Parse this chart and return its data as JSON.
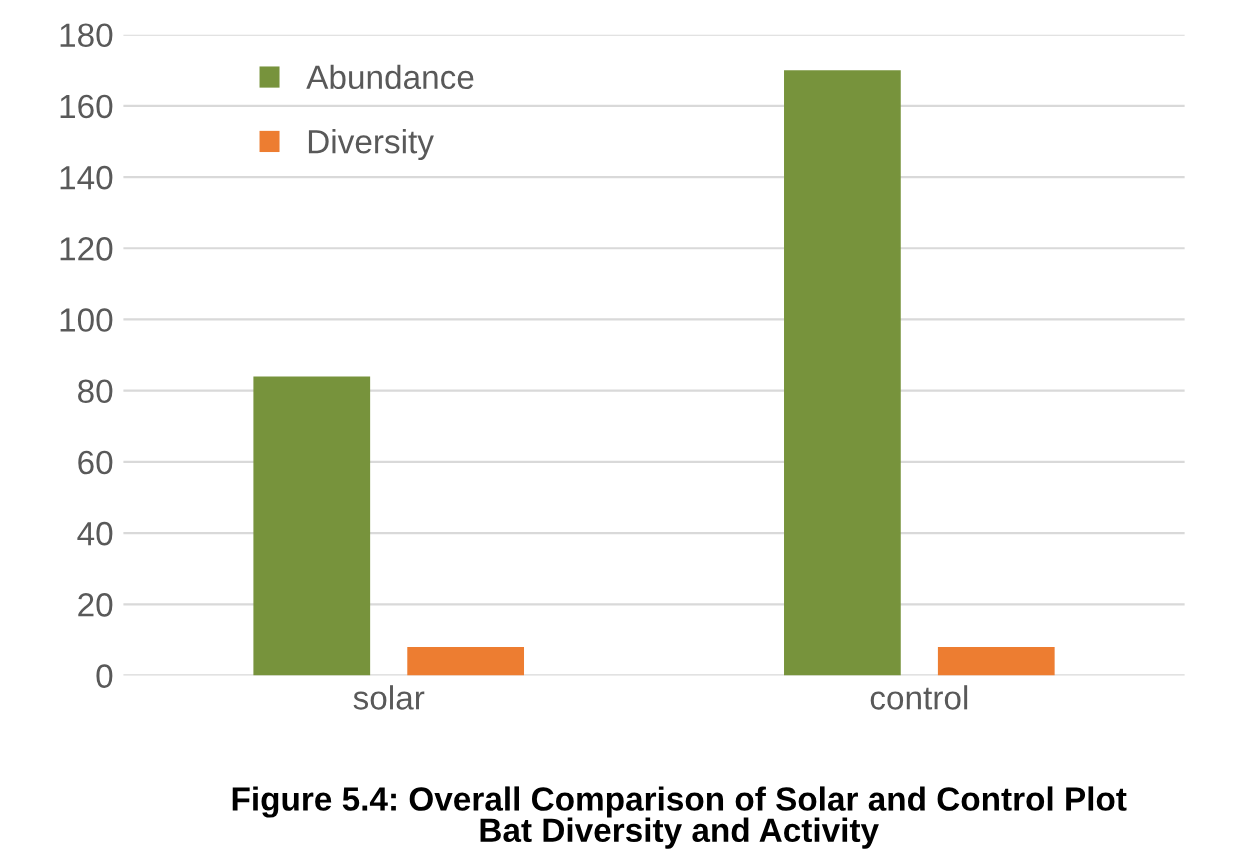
{
  "chart_data": {
    "type": "bar",
    "categories": [
      "solar",
      "control"
    ],
    "series": [
      {
        "name": "Abundance",
        "color": "#77933c",
        "values": [
          84,
          170
        ]
      },
      {
        "name": "Diversity",
        "color": "#ed7d31",
        "values": [
          8,
          8
        ]
      }
    ],
    "ylim": [
      0,
      180
    ],
    "yticks": [
      0,
      20,
      40,
      60,
      80,
      100,
      120,
      140,
      160,
      180
    ],
    "grid": "y",
    "legend": "top left",
    "annotations": [
      "Figure 5.4: Overall Comparison of Solar and Control Plot\nBat Diversity and Activity"
    ]
  }
}
